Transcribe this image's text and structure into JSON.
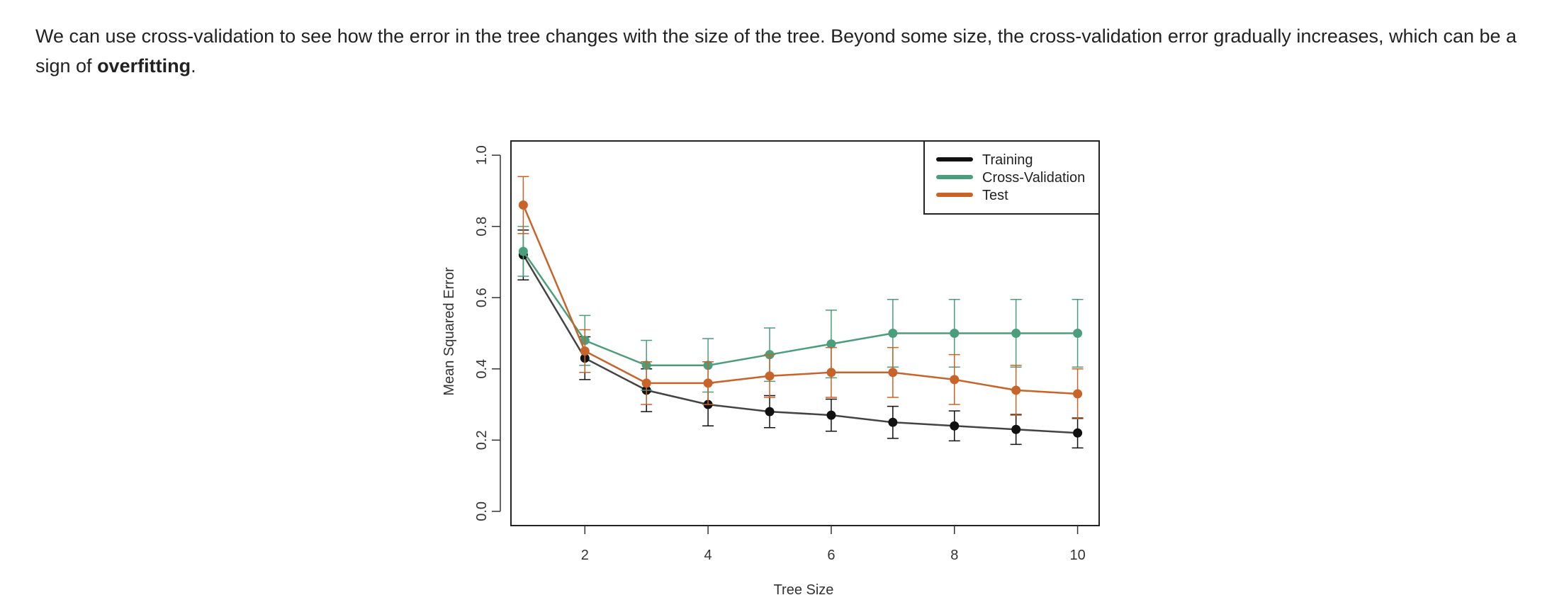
{
  "intro": {
    "before": "We can use cross-validation to see how the error in the tree changes with the size of the tree. Beyond some size, the cross-validation error gradually increases, which can be a sign of ",
    "emphasis": "overfitting",
    "after": "."
  },
  "chart_data": {
    "type": "line",
    "title": "",
    "xlabel": "Tree Size",
    "ylabel": "Mean Squared Error",
    "xlim": [
      0.8,
      10.35
    ],
    "ylim": [
      -0.04,
      1.04
    ],
    "xticks": [
      2,
      4,
      6,
      8,
      10
    ],
    "yticks": [
      0.0,
      0.2,
      0.4,
      0.6,
      0.8,
      1.0
    ],
    "x": [
      1,
      2,
      3,
      4,
      5,
      6,
      7,
      8,
      9,
      10
    ],
    "legend_position": "top-right",
    "series": [
      {
        "name": "Training",
        "color": "#111111",
        "line_color": "#444444",
        "values": [
          0.72,
          0.43,
          0.34,
          0.3,
          0.28,
          0.27,
          0.25,
          0.24,
          0.23,
          0.22
        ],
        "error": [
          0.07,
          0.06,
          0.06,
          0.06,
          0.045,
          0.045,
          0.045,
          0.042,
          0.042,
          0.042
        ]
      },
      {
        "name": "Cross-Validation",
        "color": "#4a9e7b",
        "line_color": "#4a9e7b",
        "values": [
          0.73,
          0.48,
          0.41,
          0.41,
          0.44,
          0.47,
          0.5,
          0.5,
          0.5,
          0.5
        ],
        "error": [
          0.07,
          0.07,
          0.07,
          0.075,
          0.075,
          0.095,
          0.095,
          0.095,
          0.095,
          0.095
        ]
      },
      {
        "name": "Test",
        "color": "#c8632a",
        "line_color": "#c8632a",
        "values": [
          0.86,
          0.45,
          0.36,
          0.36,
          0.38,
          0.39,
          0.39,
          0.37,
          0.34,
          0.33
        ],
        "error": [
          0.08,
          0.06,
          0.06,
          0.06,
          0.06,
          0.07,
          0.07,
          0.07,
          0.07,
          0.07
        ]
      }
    ]
  }
}
